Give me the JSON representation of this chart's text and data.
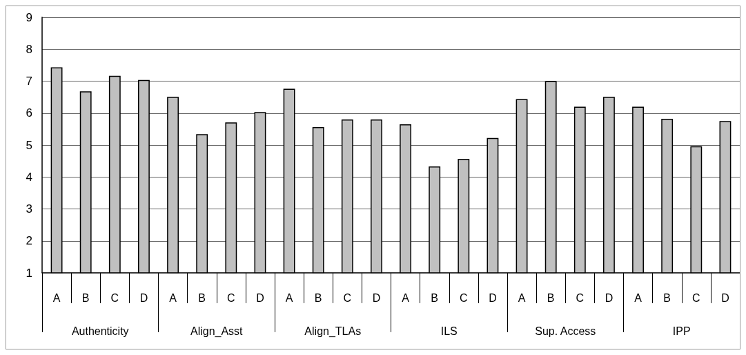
{
  "chart_data": {
    "type": "bar",
    "categories": [
      "A",
      "B",
      "C",
      "D",
      "A",
      "B",
      "C",
      "D",
      "A",
      "B",
      "C",
      "D",
      "A",
      "B",
      "C",
      "D",
      "A",
      "B",
      "C",
      "D",
      "A",
      "B",
      "C",
      "D"
    ],
    "values": [
      7.43,
      6.68,
      7.17,
      7.04,
      6.51,
      5.34,
      5.71,
      6.03,
      6.76,
      5.56,
      5.8,
      5.8,
      5.65,
      4.33,
      4.57,
      5.22,
      6.44,
      7.0,
      6.2,
      6.51,
      6.2,
      5.82,
      4.96,
      5.75
    ],
    "color": "#c0c0c0",
    "annotations": [
      "Authenticity",
      "Align_Asst",
      "Align_TLAs",
      "ILS",
      "Sup. Access",
      "IPP"
    ],
    "ylim": [
      1,
      9
    ],
    "yticks": [
      1,
      2,
      3,
      4,
      5,
      6,
      7,
      8,
      9
    ],
    "grid": "y"
  }
}
